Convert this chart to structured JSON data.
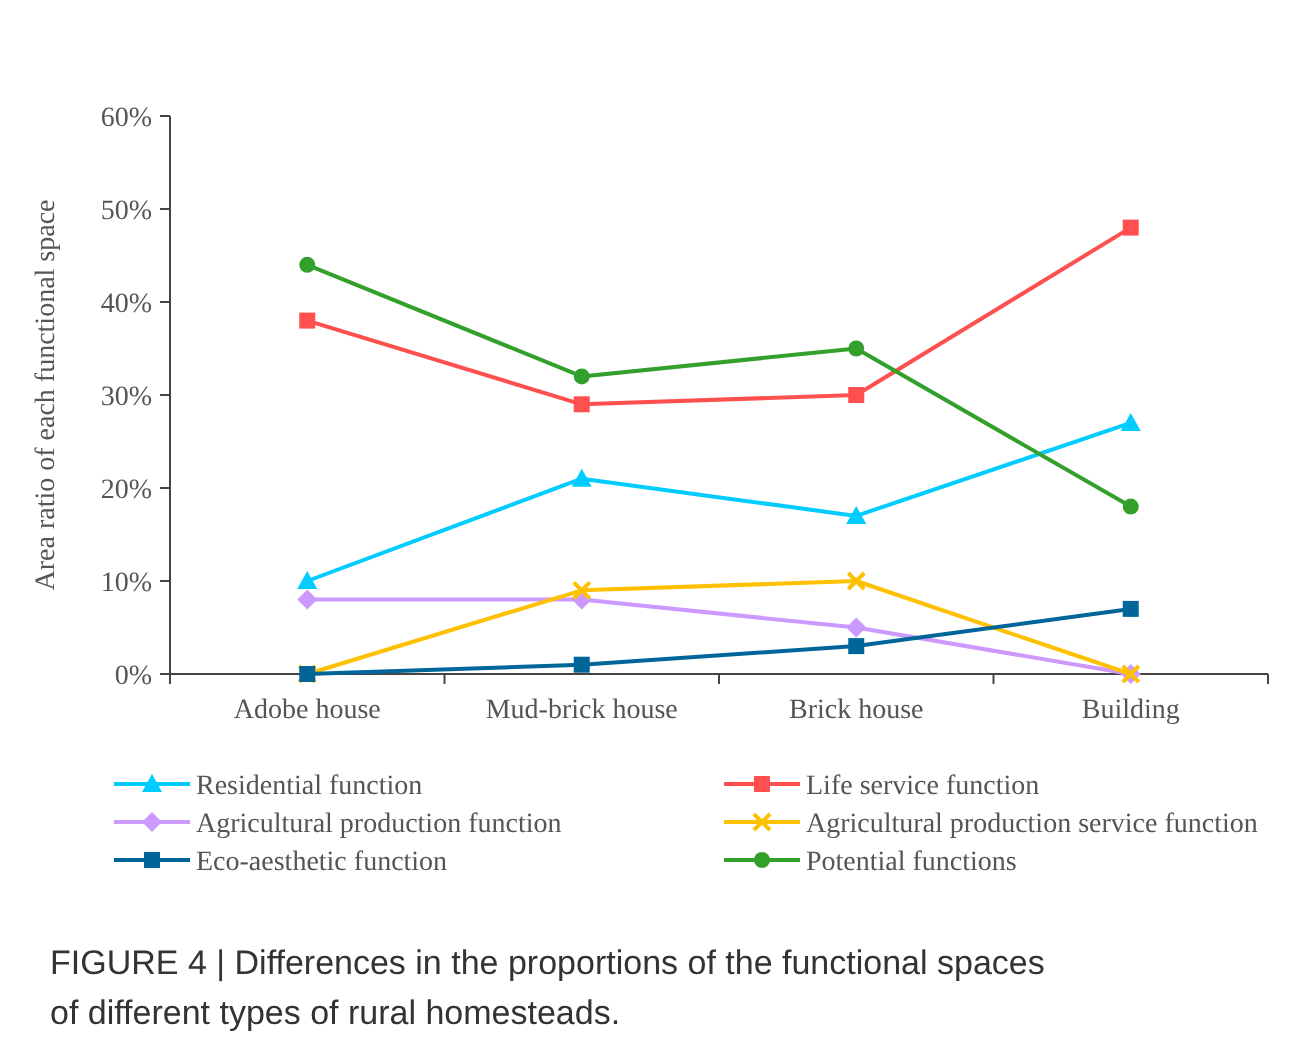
{
  "chart_data": {
    "type": "line",
    "ylabel": "Area ratio of each functional space",
    "categories": [
      "Adobe house",
      "Mud-brick house",
      "Brick house",
      "Building"
    ],
    "ylim": [
      0,
      60
    ],
    "yticks": [
      {
        "value": 0,
        "label": "0%"
      },
      {
        "value": 10,
        "label": "10%"
      },
      {
        "value": 20,
        "label": "20%"
      },
      {
        "value": 30,
        "label": "30%"
      },
      {
        "value": 40,
        "label": "40%"
      },
      {
        "value": 50,
        "label": "50%"
      },
      {
        "value": 60,
        "label": "60%"
      }
    ],
    "grid": false,
    "legend": "bottom",
    "line_style": "solid",
    "series": [
      {
        "name": "Residential function",
        "color": "#00ccff",
        "marker": "triangle",
        "values": [
          10,
          21,
          17,
          27
        ]
      },
      {
        "name": "Life service function",
        "color": "#ff5050",
        "marker": "square",
        "values": [
          38,
          29,
          30,
          48
        ]
      },
      {
        "name": "Agricultural production function",
        "color": "#cc99ff",
        "marker": "diamond",
        "values": [
          8,
          8,
          5,
          0
        ]
      },
      {
        "name": "Agricultural production service function",
        "color": "#ffc000",
        "marker": "cross",
        "values": [
          0,
          9,
          10,
          0
        ]
      },
      {
        "name": "Eco-aesthetic function",
        "color": "#006699",
        "marker": "square",
        "values": [
          0,
          1,
          3,
          7
        ]
      },
      {
        "name": "Potential functions",
        "color": "#33a02c",
        "marker": "circle",
        "values": [
          44,
          32,
          35,
          18
        ]
      }
    ],
    "annotations": [
      "FIGURE 4 | Differences in the proportions of the functional spaces of different types of rural homesteads."
    ]
  }
}
